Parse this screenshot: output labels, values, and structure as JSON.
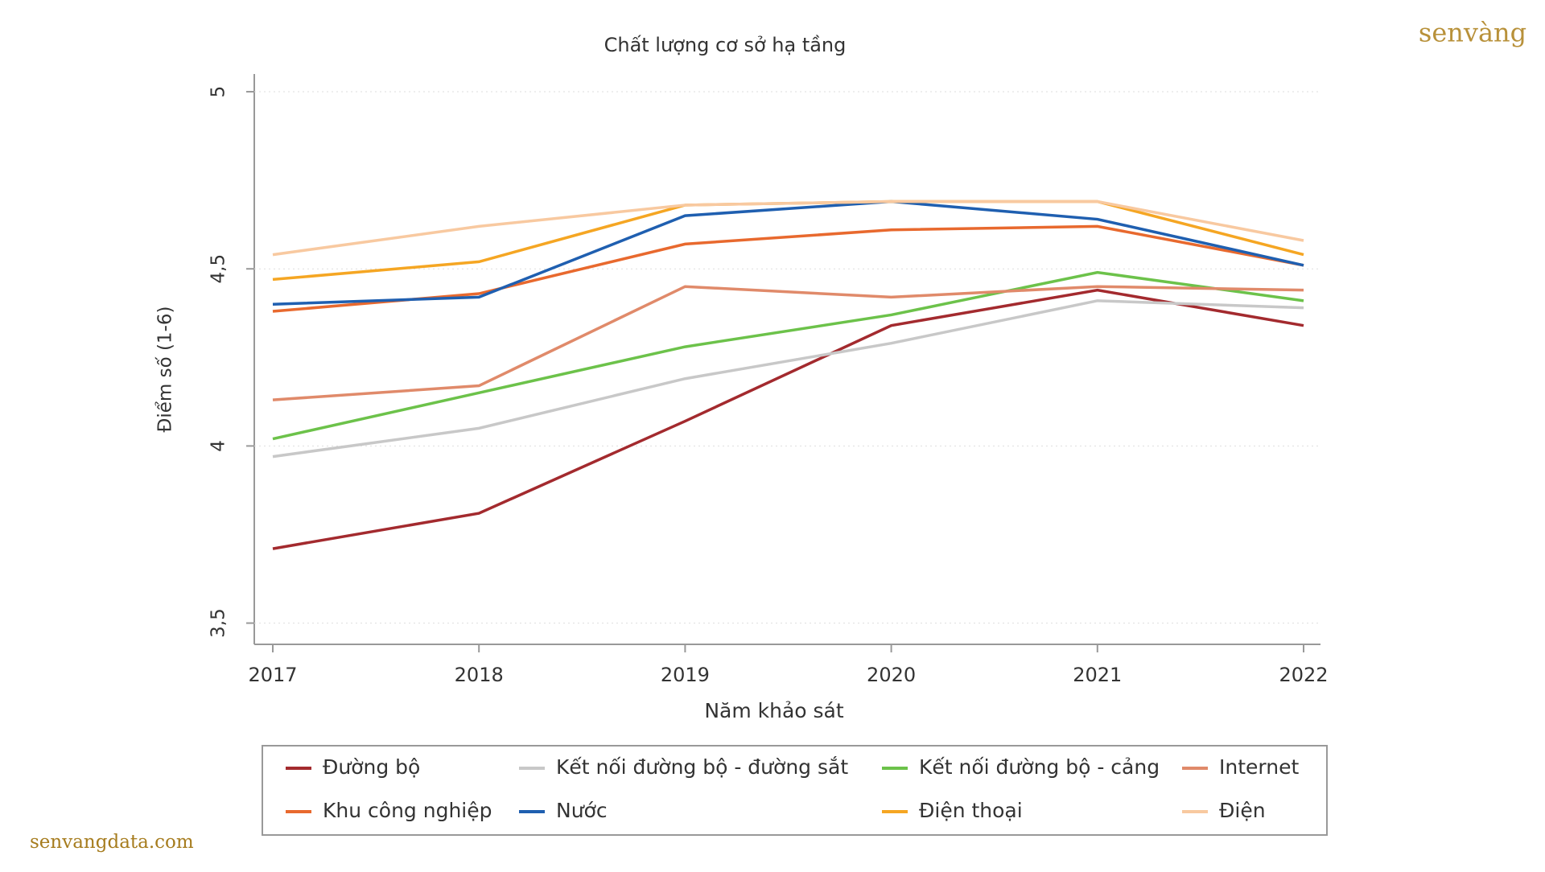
{
  "chart_data": {
    "type": "line",
    "title": "Chất lượng cơ sở hạ tầng",
    "x_label": "Năm khảo sát",
    "y_label": "Điểm số (1-6)",
    "categories": [
      "2017",
      "2018",
      "2019",
      "2020",
      "2021",
      "2022"
    ],
    "series": [
      {
        "name": "Đường bộ",
        "color": "#a32a2e",
        "values": [
          3.71,
          3.81,
          4.07,
          4.34,
          4.44,
          4.34
        ]
      },
      {
        "name": "Kết nối đường bộ - đường sắt",
        "color": "#c8c8c8",
        "values": [
          3.97,
          4.05,
          4.19,
          4.29,
          4.41,
          4.39
        ]
      },
      {
        "name": "Kết nối đường bộ - cảng",
        "color": "#6cc24a",
        "values": [
          4.02,
          4.15,
          4.28,
          4.37,
          4.49,
          4.41
        ]
      },
      {
        "name": "Internet",
        "color": "#e08a6a",
        "values": [
          4.13,
          4.17,
          4.45,
          4.42,
          4.45,
          4.44
        ]
      },
      {
        "name": "Khu công nghiệp",
        "color": "#e8692e",
        "values": [
          4.38,
          4.43,
          4.57,
          4.61,
          4.62,
          4.51
        ]
      },
      {
        "name": "Nước",
        "color": "#1f5fb0",
        "values": [
          4.4,
          4.42,
          4.65,
          4.69,
          4.64,
          4.51
        ]
      },
      {
        "name": "Điện thoại",
        "color": "#f5a623",
        "values": [
          4.47,
          4.52,
          4.68,
          4.69,
          4.69,
          4.54
        ]
      },
      {
        "name": "Điện",
        "color": "#f8c9a0",
        "values": [
          4.54,
          4.62,
          4.68,
          4.69,
          4.69,
          4.58
        ]
      }
    ],
    "ylim": [
      3.44,
      5.05
    ],
    "yticks": [
      {
        "value": 3.5,
        "label": "3,5"
      },
      4,
      {
        "value": 4.5,
        "label": "4,5"
      },
      5
    ],
    "grid": true,
    "legend": "bottom",
    "brand": "senvàng",
    "watermark": "senvangdata.com"
  }
}
